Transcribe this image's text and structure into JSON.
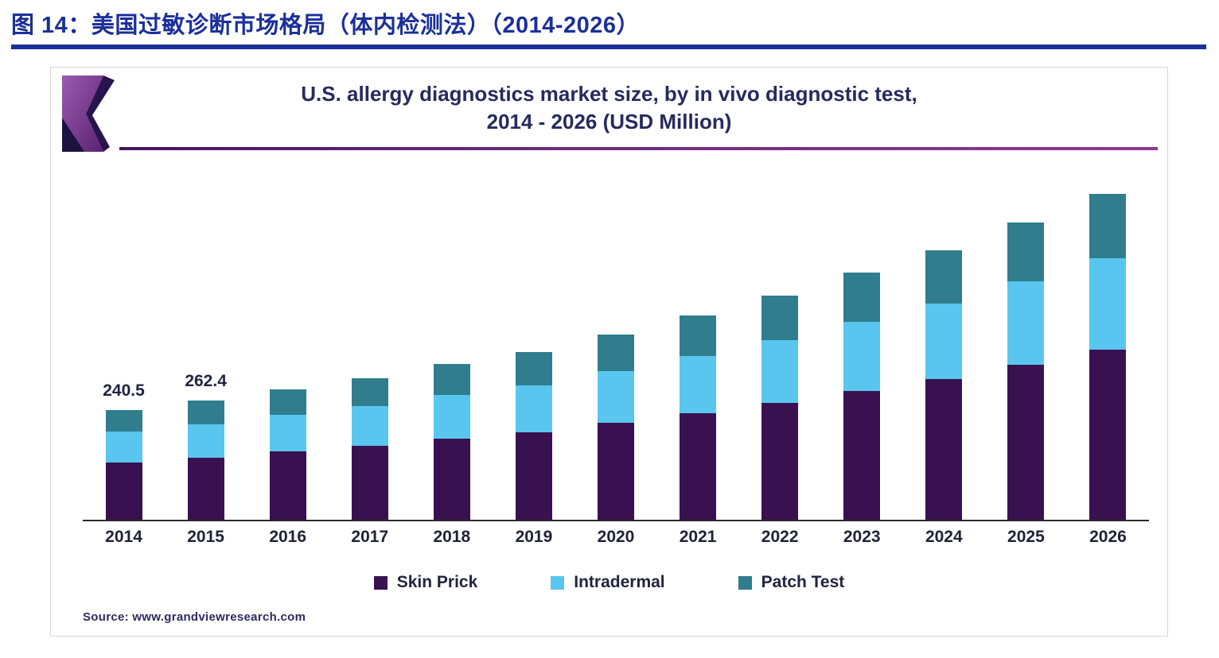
{
  "page": {
    "heading": "图 14：美国过敏诊断市场格局（体内检测法）（2014-2026）",
    "source_note": "Source: www.grandviewresearch.com"
  },
  "colors": {
    "heading_blue": "#1b2f9a",
    "title_navy": "#262a5e",
    "rule_purple": "#6b2d79"
  },
  "chart_data": {
    "type": "bar",
    "stacked": true,
    "title_line1": "U.S. allergy diagnostics market size, by in vivo diagnostic test,",
    "title_line2": "2014 - 2026 (USD Million)",
    "categories": [
      "2014",
      "2015",
      "2016",
      "2017",
      "2018",
      "2019",
      "2020",
      "2021",
      "2022",
      "2023",
      "2024",
      "2025",
      "2026"
    ],
    "series": [
      {
        "name": "Skin Prick",
        "color": "#3a1150",
        "values": [
          125.6,
          137.0,
          149.5,
          162.0,
          178.0,
          192.5,
          212.5,
          233.5,
          256.0,
          283.5,
          309.5,
          340.0,
          374.5
        ]
      },
      {
        "name": "Intradermal",
        "color": "#59c6ef",
        "values": [
          67.4,
          73.5,
          80.0,
          87.0,
          95.5,
          103.5,
          114.0,
          125.5,
          137.5,
          152.0,
          166.0,
          182.5,
          201.0
        ]
      },
      {
        "name": "Patch Test",
        "color": "#2f7d8d",
        "values": [
          47.5,
          51.9,
          56.5,
          61.5,
          67.5,
          73.0,
          80.5,
          88.5,
          97.0,
          107.5,
          117.5,
          129.0,
          142.0
        ]
      }
    ],
    "totals": [
      240.5,
      262.4,
      286.0,
      310.5,
      341.0,
      369.0,
      407.0,
      447.5,
      490.5,
      543.0,
      593.0,
      651.5,
      717.5
    ],
    "annotations": [
      {
        "category": "2014",
        "text": "240.5"
      },
      {
        "category": "2015",
        "text": "262.4"
      }
    ],
    "ylim": [
      0,
      770
    ],
    "grid": false,
    "legend_position": "bottom"
  }
}
